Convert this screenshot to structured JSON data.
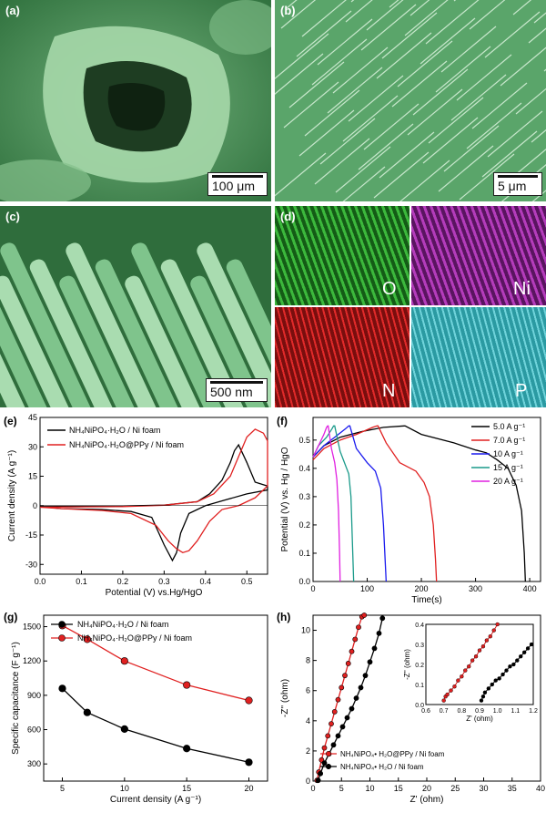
{
  "panels": {
    "a": {
      "label": "(a)",
      "scale": "100 μm"
    },
    "b": {
      "label": "(b)",
      "scale": "5 μm"
    },
    "c": {
      "label": "(c)",
      "scale": "500 nm"
    },
    "d": {
      "label": "(d)",
      "elements": [
        "O",
        "Ni",
        "N",
        "P"
      ],
      "colors": [
        "#2a9a2a",
        "#9a2aa0",
        "#c01818",
        "#3fc0c8"
      ]
    }
  },
  "chart_data": [
    {
      "id": "e",
      "panel_label": "(e)",
      "type": "line",
      "xlabel": "Potential (V) vs.Hg/HgO",
      "ylabel": "Current density (A g⁻¹)",
      "xlim": [
        0.0,
        0.55
      ],
      "ylim": [
        -35,
        45
      ],
      "xticks": [
        "0.0",
        "0.1",
        "0.2",
        "0.3",
        "0.4",
        "0.5"
      ],
      "yticks": [
        "-30",
        "-15",
        "0",
        "15",
        "30",
        "45"
      ],
      "series": [
        {
          "name": "NH₄NiPO₄·H₂O / Ni foam",
          "color": "#000000",
          "x": [
            0.0,
            0.2,
            0.3,
            0.38,
            0.41,
            0.44,
            0.46,
            0.47,
            0.48,
            0.5,
            0.52,
            0.55,
            0.55,
            0.5,
            0.45,
            0.4,
            0.36,
            0.34,
            0.33,
            0.32,
            0.3,
            0.27,
            0.22,
            0.15,
            0.05,
            0.0
          ],
          "y": [
            -0.5,
            -0.2,
            0.3,
            2,
            6,
            13,
            22,
            28,
            31,
            22,
            12,
            10,
            8,
            6,
            3,
            0,
            -4,
            -14,
            -24,
            -28,
            -20,
            -6,
            -3,
            -2,
            -1.5,
            -0.5
          ]
        },
        {
          "name": "NH₄NiPO₄·H₂O@PPy / Ni foam",
          "color": "#e02020",
          "x": [
            0.0,
            0.2,
            0.3,
            0.38,
            0.42,
            0.46,
            0.48,
            0.5,
            0.52,
            0.54,
            0.55,
            0.55,
            0.52,
            0.48,
            0.44,
            0.41,
            0.38,
            0.36,
            0.345,
            0.33,
            0.31,
            0.28,
            0.22,
            0.15,
            0.05,
            0.0
          ],
          "y": [
            -0.8,
            -0.5,
            0.2,
            2,
            6,
            15,
            25,
            35,
            39,
            37,
            33,
            10,
            4,
            0,
            -2,
            -8,
            -18,
            -23,
            -24,
            -22,
            -18,
            -10,
            -4,
            -2.5,
            -1.5,
            -0.8
          ]
        }
      ]
    },
    {
      "id": "f",
      "panel_label": "(f)",
      "type": "line",
      "xlabel": "Time(s)",
      "ylabel": "Potential (V) vs. Hg / HgO",
      "xlim": [
        0,
        420
      ],
      "ylim": [
        0.0,
        0.58
      ],
      "xticks": [
        "0",
        "100",
        "200",
        "300",
        "400"
      ],
      "yticks": [
        "0.0",
        "0.1",
        "0.2",
        "0.3",
        "0.4",
        "0.5"
      ],
      "series": [
        {
          "name": "5.0 A g⁻¹",
          "color": "#000000",
          "x": [
            0,
            20,
            50,
            90,
            130,
            168,
            170,
            200,
            260,
            300,
            320,
            340,
            360,
            375,
            385,
            390,
            392
          ],
          "y": [
            0.44,
            0.48,
            0.51,
            0.53,
            0.545,
            0.55,
            0.55,
            0.52,
            0.49,
            0.465,
            0.455,
            0.43,
            0.4,
            0.34,
            0.25,
            0.1,
            0.0
          ]
        },
        {
          "name": "7.0 A g⁻¹",
          "color": "#e02020",
          "x": [
            0,
            20,
            50,
            80,
            110,
            118,
            120,
            135,
            160,
            190,
            205,
            215,
            222,
            226,
            228
          ],
          "y": [
            0.43,
            0.47,
            0.5,
            0.52,
            0.545,
            0.55,
            0.55,
            0.49,
            0.42,
            0.39,
            0.35,
            0.3,
            0.2,
            0.08,
            0.0
          ]
        },
        {
          "name": "10  A g⁻¹",
          "color": "#1a1aee",
          "x": [
            0,
            20,
            40,
            60,
            66,
            68,
            80,
            100,
            115,
            125,
            130,
            133,
            135
          ],
          "y": [
            0.44,
            0.48,
            0.51,
            0.54,
            0.55,
            0.55,
            0.47,
            0.42,
            0.39,
            0.33,
            0.2,
            0.08,
            0.0
          ]
        },
        {
          "name": "15  A g⁻¹",
          "color": "#1a9a8a",
          "x": [
            0,
            10,
            25,
            35,
            38,
            40,
            50,
            58,
            66,
            70,
            73,
            75
          ],
          "y": [
            0.44,
            0.48,
            0.51,
            0.54,
            0.55,
            0.55,
            0.46,
            0.42,
            0.38,
            0.3,
            0.12,
            0.0
          ]
        },
        {
          "name": "20  A g⁻¹",
          "color": "#e020e0",
          "x": [
            0,
            10,
            20,
            25,
            27,
            28,
            34,
            40,
            44,
            47,
            49,
            50
          ],
          "y": [
            0.44,
            0.48,
            0.52,
            0.545,
            0.55,
            0.55,
            0.47,
            0.42,
            0.36,
            0.25,
            0.1,
            0.0
          ]
        }
      ]
    },
    {
      "id": "g",
      "panel_label": "(g)",
      "type": "line",
      "xlabel": "Current density (A g⁻¹)",
      "ylabel": "Specific capacitance (F g⁻¹)",
      "xlim": [
        3.5,
        21.5
      ],
      "ylim": [
        150,
        1600
      ],
      "xticks": [
        "5",
        "10",
        "15",
        "20"
      ],
      "yticks": [
        "300",
        "600",
        "900",
        "1200",
        "1500"
      ],
      "series": [
        {
          "name": "NH₄NiPO₄·H₂O / Ni foam",
          "color": "#000000",
          "x": [
            5,
            7,
            10,
            15,
            20
          ],
          "y": [
            960,
            750,
            605,
            435,
            315
          ]
        },
        {
          "name": "NH₄NiPO₄·H₂O@PPy / Ni foam",
          "color": "#e02020",
          "x": [
            5,
            7,
            10,
            15,
            20
          ],
          "y": [
            1510,
            1390,
            1200,
            990,
            855
          ]
        }
      ]
    },
    {
      "id": "h",
      "panel_label": "(h)",
      "type": "scatter",
      "xlabel": "Z' (ohm)",
      "ylabel": "-Z'' (ohm)",
      "xlim": [
        0,
        40
      ],
      "ylim": [
        0,
        11
      ],
      "xticks": [
        "0",
        "5",
        "10",
        "15",
        "20",
        "25",
        "30",
        "35",
        "40"
      ],
      "yticks": [
        "0",
        "2",
        "4",
        "6",
        "8",
        "10"
      ],
      "series": [
        {
          "name": "NH₄NiPO₄• H₂O@PPy / Ni foam",
          "color": "#e02020",
          "x": [
            0.7,
            1.0,
            1.5,
            2.0,
            2.6,
            3.2,
            3.8,
            4.4,
            5.0,
            5.6,
            6.2,
            6.8,
            7.4,
            8.0,
            8.6,
            9.0
          ],
          "y": [
            0.05,
            0.6,
            1.4,
            2.2,
            3.0,
            3.8,
            4.6,
            5.4,
            6.2,
            7.0,
            7.8,
            8.6,
            9.4,
            10.2,
            10.9,
            11.0
          ]
        },
        {
          "name": "NH₄NiPO₄• H₂O / Ni foam",
          "color": "#000000",
          "x": [
            0.9,
            1.3,
            2.0,
            2.8,
            3.6,
            4.4,
            5.2,
            6.0,
            6.8,
            7.6,
            8.4,
            9.2,
            10.0,
            10.8,
            11.6,
            12.2
          ],
          "y": [
            0.05,
            0.5,
            1.2,
            1.8,
            2.4,
            3.0,
            3.6,
            4.2,
            4.8,
            5.5,
            6.2,
            7.0,
            7.9,
            8.8,
            9.8,
            10.8
          ]
        }
      ],
      "inset": {
        "xlabel": "Z' (ohm)",
        "ylabel": "-Z'' (ohm)",
        "xlim": [
          0.6,
          1.2
        ],
        "ylim": [
          0.0,
          0.4
        ],
        "xticks": [
          "0.6",
          "0.7",
          "0.8",
          "0.9",
          "1.0",
          "1.1",
          "1.2"
        ],
        "yticks": [
          "0.0",
          "0.1",
          "0.2",
          "0.3",
          "0.4"
        ],
        "series": [
          {
            "color": "#e02020",
            "x": [
              0.7,
              0.71,
              0.72,
              0.74,
              0.76,
              0.78,
              0.8,
              0.82,
              0.84,
              0.86,
              0.88,
              0.9,
              0.92,
              0.94,
              0.96,
              0.98,
              1.0
            ],
            "y": [
              0.02,
              0.04,
              0.05,
              0.07,
              0.09,
              0.12,
              0.14,
              0.17,
              0.19,
              0.22,
              0.24,
              0.27,
              0.29,
              0.32,
              0.34,
              0.37,
              0.4
            ]
          },
          {
            "color": "#000000",
            "x": [
              0.91,
              0.92,
              0.93,
              0.95,
              0.97,
              0.99,
              1.01,
              1.03,
              1.05,
              1.07,
              1.09,
              1.11,
              1.13,
              1.15,
              1.17,
              1.19
            ],
            "y": [
              0.02,
              0.04,
              0.06,
              0.08,
              0.1,
              0.12,
              0.13,
              0.15,
              0.17,
              0.19,
              0.2,
              0.22,
              0.24,
              0.26,
              0.28,
              0.3
            ]
          }
        ]
      }
    }
  ]
}
